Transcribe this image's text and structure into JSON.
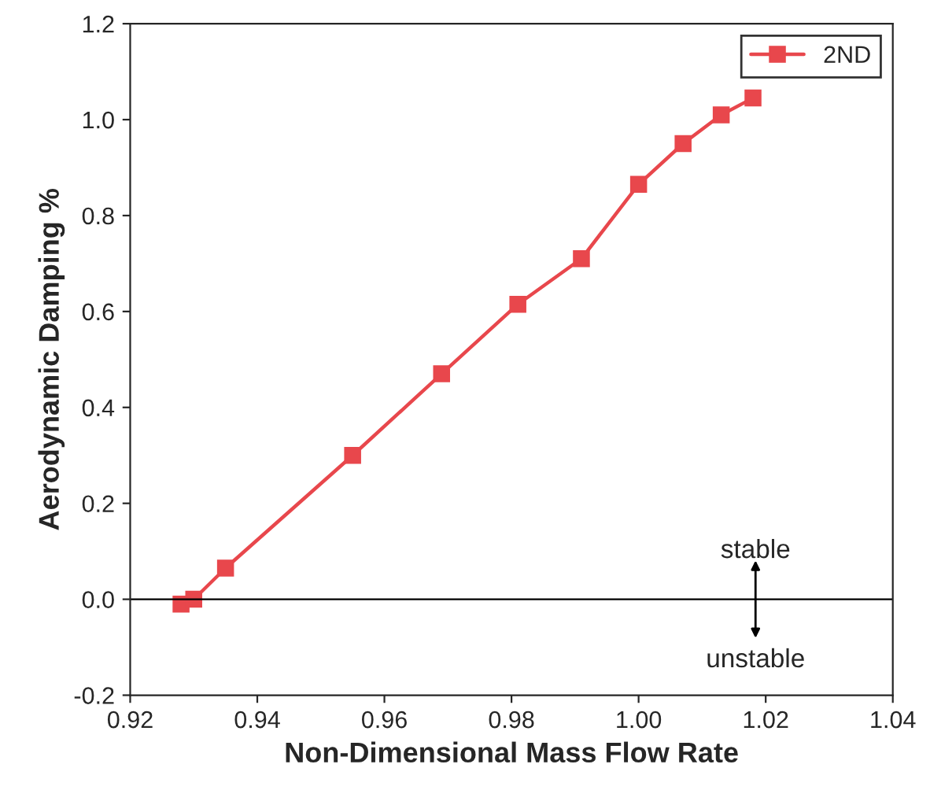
{
  "chart_data": {
    "type": "line",
    "xlabel": "Non-Dimensional Mass Flow Rate",
    "ylabel": "Aerodynamic Damping %",
    "x": [
      0.928,
      0.93,
      0.935,
      0.955,
      0.969,
      0.981,
      0.991,
      1.0,
      1.007,
      1.013,
      1.018
    ],
    "series": [
      {
        "name": "2ND",
        "color": "#e8474c",
        "values": [
          -0.01,
          0.0,
          0.065,
          0.3,
          0.47,
          0.615,
          0.71,
          0.865,
          0.95,
          1.01,
          1.045
        ]
      }
    ],
    "xlim": [
      0.92,
      1.04
    ],
    "xticks": [
      {
        "value": 0.92,
        "label": "0.92"
      },
      {
        "value": 0.94,
        "label": "0.94"
      },
      {
        "value": 0.96,
        "label": "0.96"
      },
      {
        "value": 0.98,
        "label": "0.98"
      },
      {
        "value": 1.0,
        "label": "1.00"
      },
      {
        "value": 1.02,
        "label": "1.02"
      },
      {
        "value": 1.04,
        "label": "1.04"
      }
    ],
    "ylim": [
      -0.2,
      1.2
    ],
    "yticks": [
      {
        "value": -0.2,
        "label": "-0.2"
      },
      {
        "value": 0.0,
        "label": "0.0"
      },
      {
        "value": 0.2,
        "label": "0.2"
      },
      {
        "value": 0.4,
        "label": "0.4"
      },
      {
        "value": 0.6,
        "label": "0.6"
      },
      {
        "value": 0.8,
        "label": "0.8"
      },
      {
        "value": 1.0,
        "label": "1.0"
      },
      {
        "value": 1.2,
        "label": "1.2"
      }
    ],
    "ref_lines": [
      {
        "axis": "y",
        "value": 0.0,
        "color": "#000000"
      }
    ],
    "annotations": [
      "stable",
      "unstable"
    ],
    "grid": false,
    "legend": "top right",
    "marker": "square",
    "line_style": "solid"
  }
}
